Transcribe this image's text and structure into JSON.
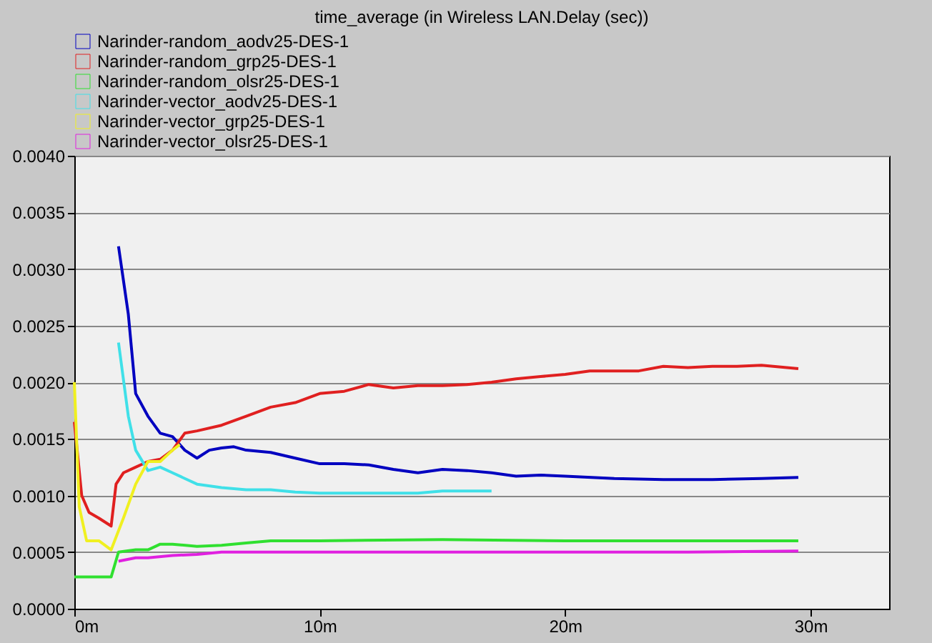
{
  "chart_data": {
    "type": "line",
    "title": "time_average (in Wireless LAN.Delay (sec))",
    "xlim": [
      0,
      33.2
    ],
    "xticks": [
      {
        "value": 0,
        "label": "0m"
      },
      {
        "value": 10,
        "label": "10m"
      },
      {
        "value": 20,
        "label": "20m"
      },
      {
        "value": 30,
        "label": "30m"
      }
    ],
    "ylim": [
      0,
      0.004
    ],
    "yticks": [
      {
        "value": 0,
        "label": "0.0000"
      },
      {
        "value": 0.0005,
        "label": "0.0005"
      },
      {
        "value": 0.001,
        "label": "0.0010"
      },
      {
        "value": 0.0015,
        "label": "0.0015"
      },
      {
        "value": 0.002,
        "label": "0.0020"
      },
      {
        "value": 0.0025,
        "label": "0.0025"
      },
      {
        "value": 0.003,
        "label": "0.0030"
      },
      {
        "value": 0.0035,
        "label": "0.0035"
      },
      {
        "value": 0.004,
        "label": "0.0040"
      }
    ],
    "grid": "y",
    "legend": "top left",
    "marker": "none",
    "line_style": "solid",
    "series": [
      {
        "name": "Narinder-random_aodv25-DES-1",
        "color": "#0000c0",
        "x": [
          1.8,
          2.2,
          2.5,
          3,
          3.5,
          4,
          4.5,
          5,
          5.5,
          6,
          6.5,
          7,
          8,
          9,
          10,
          11,
          12,
          13,
          14,
          15,
          16,
          17,
          18,
          19,
          20,
          22,
          24,
          26,
          28,
          29.5
        ],
        "values": [
          0.0032,
          0.0026,
          0.0019,
          0.0017,
          0.00155,
          0.00152,
          0.0014,
          0.00133,
          0.0014,
          0.00142,
          0.00143,
          0.0014,
          0.00138,
          0.00133,
          0.00128,
          0.00128,
          0.00127,
          0.00123,
          0.0012,
          0.00123,
          0.00122,
          0.0012,
          0.00117,
          0.00118,
          0.00117,
          0.00115,
          0.00114,
          0.00114,
          0.00115,
          0.00116
        ]
      },
      {
        "name": "Narinder-random_grp25-DES-1",
        "color": "#e02020",
        "x": [
          0,
          0.3,
          0.6,
          1.0,
          1.5,
          1.7,
          2.0,
          2.5,
          3,
          3.5,
          4,
          4.5,
          5,
          6,
          7,
          8,
          9,
          10,
          11,
          12,
          13,
          14,
          15,
          16,
          17,
          18,
          19,
          20,
          21,
          22,
          23,
          24,
          25,
          26,
          27,
          28,
          29.5
        ],
        "values": [
          0.00165,
          0.001,
          0.00085,
          0.0008,
          0.00073,
          0.0011,
          0.0012,
          0.00125,
          0.0013,
          0.00132,
          0.0014,
          0.00155,
          0.00157,
          0.00162,
          0.0017,
          0.00178,
          0.00182,
          0.0019,
          0.00192,
          0.00198,
          0.00195,
          0.00197,
          0.00197,
          0.00198,
          0.002,
          0.00203,
          0.00205,
          0.00207,
          0.0021,
          0.0021,
          0.0021,
          0.00214,
          0.00213,
          0.00214,
          0.00214,
          0.00215,
          0.00212
        ]
      },
      {
        "name": "Narinder-random_olsr25-DES-1",
        "color": "#30e030",
        "x": [
          0,
          1.5,
          1.8,
          2.5,
          3,
          3.5,
          4,
          5,
          6,
          7,
          8,
          10,
          15,
          20,
          25,
          29.5
        ],
        "values": [
          0.00028,
          0.00028,
          0.0005,
          0.00052,
          0.00052,
          0.00057,
          0.00057,
          0.00055,
          0.00056,
          0.00058,
          0.0006,
          0.0006,
          0.00061,
          0.0006,
          0.0006,
          0.0006
        ]
      },
      {
        "name": "Narinder-vector_aodv25-DES-1",
        "color": "#40e0e8",
        "x": [
          1.8,
          2.2,
          2.5,
          3,
          3.5,
          4,
          4.5,
          5,
          6,
          7,
          8,
          9,
          10,
          12,
          14,
          15,
          17
        ],
        "values": [
          0.00235,
          0.0017,
          0.0014,
          0.00122,
          0.00125,
          0.0012,
          0.00115,
          0.0011,
          0.00107,
          0.00105,
          0.00105,
          0.00103,
          0.00102,
          0.00102,
          0.00102,
          0.00104,
          0.00104
        ]
      },
      {
        "name": "Narinder-vector_grp25-DES-1",
        "color": "#f0f020",
        "x": [
          0,
          0.2,
          0.5,
          1.0,
          1.5,
          2.0,
          2.5,
          3,
          3.5,
          4,
          4.3
        ],
        "values": [
          0.002,
          0.0009,
          0.0006,
          0.0006,
          0.00052,
          0.0008,
          0.0011,
          0.0013,
          0.0013,
          0.0014,
          0.00145
        ]
      },
      {
        "name": "Narinder-vector_olsr25-DES-1",
        "color": "#e020e0",
        "x": [
          1.8,
          2.5,
          3,
          4,
          5,
          6,
          8,
          10,
          15,
          20,
          25,
          29.5
        ],
        "values": [
          0.00042,
          0.00045,
          0.00045,
          0.00047,
          0.00048,
          0.0005,
          0.0005,
          0.0005,
          0.0005,
          0.0005,
          0.0005,
          0.00051
        ]
      }
    ]
  }
}
